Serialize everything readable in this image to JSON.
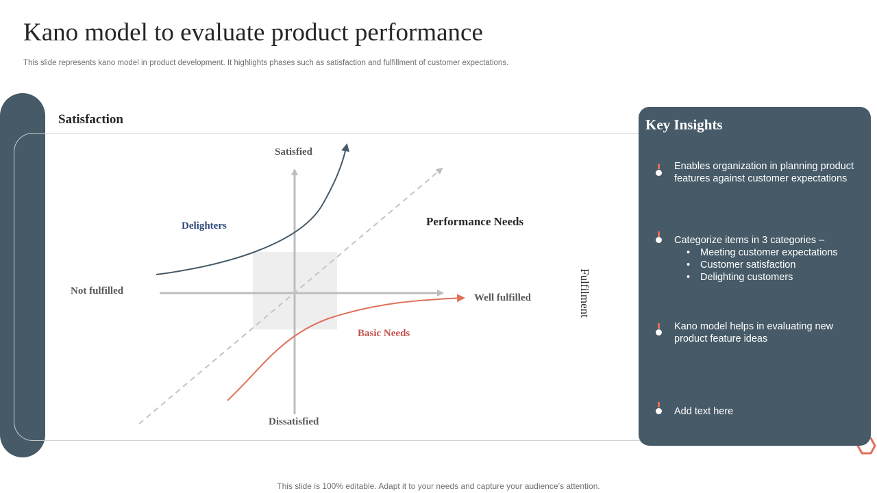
{
  "slide": {
    "title": "Kano model to evaluate product performance",
    "subtitle": "This slide represents kano model in product development. It highlights phases such as satisfaction and fulfillment of customer expectations.",
    "footer": "This slide is 100% editable. Adapt it to your needs and capture your audience’s attention."
  },
  "diagram": {
    "section_title": "Satisfaction",
    "axis_labels": {
      "top": "Satisfied",
      "bottom": "Dissatisfied",
      "left": "Not fulfilled",
      "right": "Well fulfilled",
      "side": "Fulfilment"
    },
    "curves": {
      "delighters": "Delighters",
      "performance": "Performance Needs",
      "basic": "Basic Needs"
    }
  },
  "insights": {
    "title": "Key Insights",
    "items": [
      {
        "text": "Enables organization in planning product features against customer expectations"
      },
      {
        "text": "Categorize items in 3 categories –",
        "bullets": [
          "Meeting customer expectations",
          "Customer satisfaction",
          "Delighting customers"
        ]
      },
      {
        "text": "Kano model helps in evaluating new product feature ideas"
      },
      {
        "text": "Add text here"
      }
    ]
  },
  "colors": {
    "slate": "#465a67",
    "accent": "#e0705a",
    "delighters_text": "#2e4a7a",
    "basic_text": "#c0504d",
    "axis": "#bdbdbd"
  }
}
